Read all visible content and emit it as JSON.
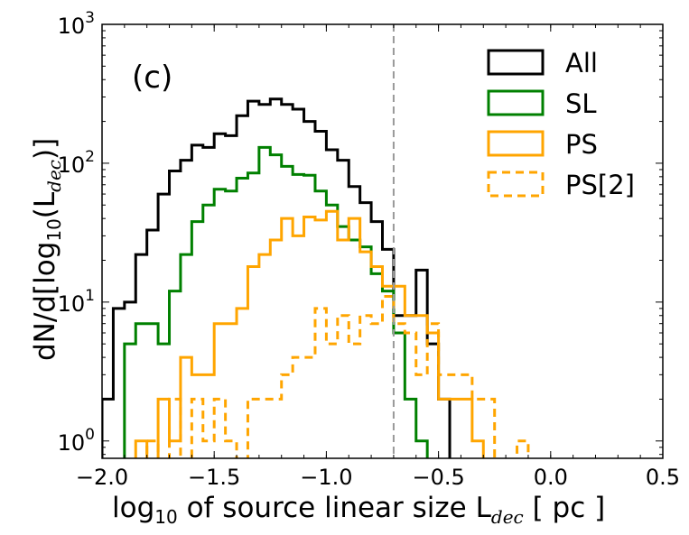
{
  "chart_data": {
    "type": "histogram",
    "panel_label": "(c)",
    "xlabel": {
      "main": "log",
      "sub": "10",
      "rest": " of source linear size L",
      "sub2": "dec",
      "end": " [ pc ]"
    },
    "ylabel": {
      "main": "dN/d[log",
      "sub": "10",
      "mid": "(L",
      "sub2": "dec",
      "end": ")]"
    },
    "x_ticks": [
      "−2.0",
      "−1.5",
      "−1.0",
      "−0.5",
      "0.0",
      "0.5"
    ],
    "x_tick_values": [
      -2.0,
      -1.5,
      -1.0,
      -0.5,
      0.0,
      0.5
    ],
    "y_ticks": [
      {
        "base": "10",
        "exp": "0",
        "value": 1
      },
      {
        "base": "10",
        "exp": "1",
        "value": 10
      },
      {
        "base": "10",
        "exp": "2",
        "value": 100
      },
      {
        "base": "10",
        "exp": "3",
        "value": 1000
      }
    ],
    "xlim": [
      -2.0,
      0.5
    ],
    "ylim": [
      0.75,
      1000
    ],
    "yscale": "log",
    "reference_line": {
      "x": -0.7,
      "style": "dashed",
      "color": "#999999"
    },
    "bin_edges": [
      -2.0,
      -1.95,
      -1.9,
      -1.85,
      -1.8,
      -1.75,
      -1.7,
      -1.65,
      -1.6,
      -1.55,
      -1.5,
      -1.45,
      -1.4,
      -1.35,
      -1.3,
      -1.25,
      -1.2,
      -1.15,
      -1.1,
      -1.05,
      -1.0,
      -0.95,
      -0.9,
      -0.85,
      -0.8,
      -0.75,
      -0.7,
      -0.65,
      -0.6,
      -0.55,
      -0.5,
      -0.45,
      -0.4,
      -0.35,
      -0.3,
      -0.25,
      -0.2,
      -0.15,
      -0.1,
      -0.05,
      0.0,
      0.05,
      0.1,
      0.15,
      0.2,
      0.25,
      0.3,
      0.35,
      0.4,
      0.45,
      0.5
    ],
    "series": [
      {
        "name": "All",
        "color": "#000000",
        "style": "solid",
        "values": [
          2,
          9,
          10,
          22,
          33,
          60,
          88,
          105,
          135,
          130,
          163,
          158,
          220,
          280,
          265,
          290,
          265,
          245,
          200,
          170,
          125,
          105,
          68,
          52,
          38,
          24,
          8,
          8,
          17,
          5,
          2,
          0,
          0,
          0,
          0,
          0,
          0,
          0,
          0,
          0
        ],
        "bin_start": -2.0
      },
      {
        "name": "SL",
        "color": "#008000",
        "style": "solid",
        "values": [
          0,
          5,
          7,
          7,
          5,
          12,
          22,
          38,
          50,
          65,
          63,
          78,
          85,
          130,
          115,
          95,
          83,
          82,
          63,
          50,
          35,
          28,
          25,
          16,
          12,
          6,
          2,
          1
        ],
        "bin_start": -1.95
      },
      {
        "name": "PS",
        "color": "#ffa500",
        "style": "solid",
        "values": [
          1,
          0,
          2,
          1,
          4,
          3,
          3,
          7,
          7,
          9,
          18,
          22,
          28,
          40,
          30,
          41,
          39,
          45,
          28,
          40,
          23,
          18,
          13,
          13,
          8,
          8,
          6,
          2,
          2,
          2,
          1
        ],
        "bin_start": -1.85
      },
      {
        "name": "PS[2]",
        "color": "#ffa500",
        "style": "dashed",
        "values": [
          1,
          0,
          2,
          0,
          2,
          1,
          2,
          1,
          0,
          2,
          2,
          2,
          3,
          4,
          4,
          9,
          5,
          8,
          5,
          8,
          7,
          11,
          7,
          6,
          3,
          7,
          3,
          3,
          3,
          2,
          2,
          0,
          0,
          1,
          0
        ],
        "bin_start": -1.8
      }
    ],
    "legend": {
      "placement": "top-right",
      "entries": [
        "All",
        "SL",
        "PS",
        "PS[2]"
      ]
    }
  }
}
